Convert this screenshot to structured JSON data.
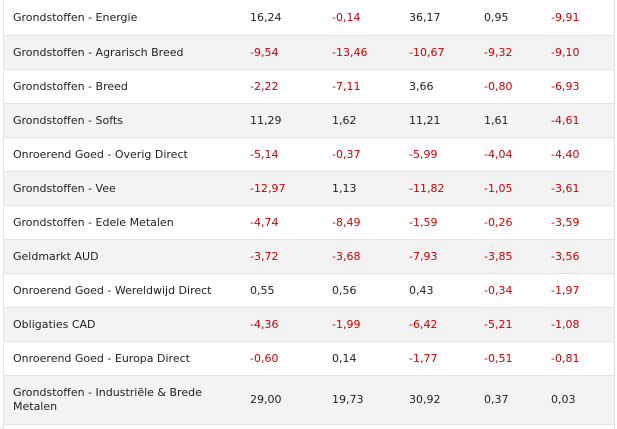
{
  "table": {
    "rows": [
      {
        "name": "Grondstoffen - Energie",
        "values": [
          "16,24",
          "-0,14",
          "36,17",
          "0,95",
          "-9,91"
        ]
      },
      {
        "name": "Grondstoffen - Agrarisch Breed",
        "values": [
          "-9,54",
          "-13,46",
          "-10,67",
          "-9,32",
          "-9,10"
        ]
      },
      {
        "name": "Grondstoffen - Breed",
        "values": [
          "-2,22",
          "-7,11",
          "3,66",
          "-0,80",
          "-6,93"
        ]
      },
      {
        "name": "Grondstoffen - Softs",
        "values": [
          "11,29",
          "1,62",
          "11,21",
          "1,61",
          "-4,61"
        ]
      },
      {
        "name": "Onroerend Goed - Overig Direct",
        "values": [
          "-5,14",
          "-0,37",
          "-5,99",
          "-4,04",
          "-4,40"
        ]
      },
      {
        "name": "Grondstoffen - Vee",
        "values": [
          "-12,97",
          "1,13",
          "-11,82",
          "-1,05",
          "-3,61"
        ]
      },
      {
        "name": "Grondstoffen - Edele Metalen",
        "values": [
          "-4,74",
          "-8,49",
          "-1,59",
          "-0,26",
          "-3,59"
        ]
      },
      {
        "name": "Geldmarkt AUD",
        "values": [
          "-3,72",
          "-3,68",
          "-7,93",
          "-3,85",
          "-3,56"
        ]
      },
      {
        "name": "Onroerend Goed - Wereldwijd Direct",
        "values": [
          "0,55",
          "0,56",
          "0,43",
          "-0,34",
          "-1,97"
        ]
      },
      {
        "name": "Obligaties CAD",
        "values": [
          "-4,36",
          "-1,99",
          "-6,42",
          "-5,21",
          "-1,08"
        ]
      },
      {
        "name": "Onroerend Goed - Europa Direct",
        "values": [
          "-0,60",
          "0,14",
          "-1,77",
          "-0,51",
          "-0,81"
        ]
      },
      {
        "name": "Grondstoffen - Industriële & Brede Metalen",
        "values": [
          "29,00",
          "19,73",
          "30,92",
          "0,37",
          "0,03"
        ]
      }
    ]
  },
  "colors": {
    "negative": "#cc0000",
    "positive": "#222222",
    "row_alt": "#f3f3f3",
    "divider": "#e3e3e3"
  }
}
